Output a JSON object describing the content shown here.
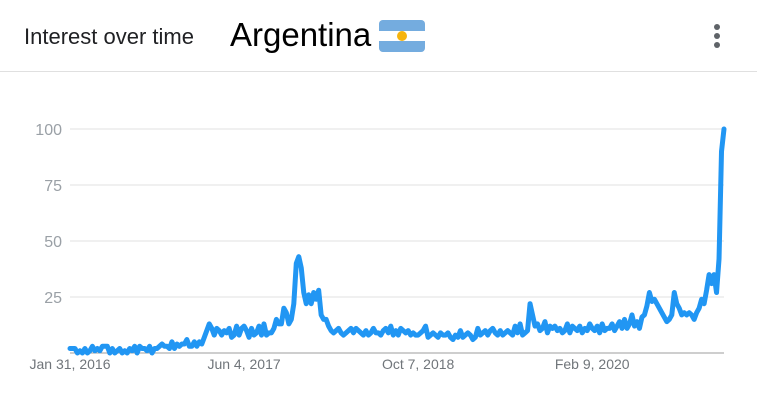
{
  "header": {
    "title": "Interest over time",
    "region": "Argentina",
    "flag_icon": "argentina-flag-icon",
    "menu_icon": "more-vert-icon"
  },
  "chart_data": {
    "type": "line",
    "title": "Interest over time",
    "color": "#2196f3",
    "x_start": "2016-01-31",
    "x_step_days": 7,
    "ylim": [
      0,
      100
    ],
    "y_ticks": [
      25,
      50,
      75,
      100
    ],
    "x_tick_labels": [
      "Jan 31, 2016",
      "Jun 4, 2017",
      "Oct 7, 2018",
      "Feb 9, 2020"
    ],
    "x_tick_weeks": [
      0,
      70,
      140,
      210
    ],
    "grid": true,
    "legend": "none",
    "values": [
      2,
      2,
      2,
      0,
      1,
      0,
      2,
      0,
      1,
      3,
      1,
      2,
      1,
      3,
      3,
      3,
      0,
      2,
      0,
      1,
      2,
      0,
      1,
      0,
      2,
      1,
      3,
      0,
      3,
      2,
      2,
      1,
      3,
      0,
      2,
      2,
      3,
      4,
      3,
      3,
      2,
      5,
      2,
      4,
      3,
      4,
      4,
      6,
      3,
      3,
      5,
      3,
      5,
      4,
      7,
      10,
      13,
      11,
      8,
      11,
      10,
      8,
      10,
      9,
      11,
      7,
      8,
      12,
      8,
      11,
      12,
      10,
      7,
      11,
      8,
      9,
      12,
      8,
      13,
      8,
      9,
      9,
      11,
      15,
      13,
      13,
      20,
      18,
      13,
      15,
      22,
      40,
      43,
      38,
      27,
      22,
      26,
      22,
      27,
      24,
      28,
      17,
      15,
      15,
      12,
      10,
      9,
      10,
      11,
      9,
      8,
      9,
      10,
      11,
      9,
      11,
      10,
      9,
      8,
      10,
      8,
      9,
      11,
      9,
      9,
      8,
      10,
      11,
      9,
      12,
      8,
      10,
      8,
      11,
      10,
      9,
      10,
      8,
      9,
      8,
      8,
      9,
      10,
      12,
      7,
      8,
      9,
      8,
      7,
      9,
      8,
      8,
      9,
      7,
      6,
      8,
      7,
      10,
      7,
      8,
      9,
      8,
      6,
      7,
      11,
      8,
      9,
      10,
      8,
      10,
      11,
      9,
      8,
      10,
      8,
      9,
      10,
      9,
      8,
      12,
      9,
      13,
      8,
      9,
      10,
      22,
      17,
      12,
      13,
      10,
      11,
      14,
      9,
      12,
      11,
      12,
      10,
      11,
      9,
      10,
      13,
      9,
      12,
      11,
      10,
      12,
      9,
      11,
      10,
      13,
      11,
      10,
      12,
      9,
      13,
      10,
      11,
      11,
      13,
      10,
      12,
      14,
      11,
      15,
      11,
      13,
      17,
      12,
      14,
      11,
      16,
      17,
      21,
      27,
      23,
      24,
      22,
      20,
      18,
      16,
      14,
      15,
      17,
      27,
      22,
      20,
      17,
      18,
      17,
      18,
      17,
      15,
      18,
      20,
      24,
      22,
      28,
      35,
      31,
      35,
      27,
      42,
      90,
      100
    ]
  }
}
